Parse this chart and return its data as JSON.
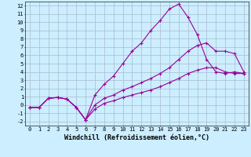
{
  "xlabel": "Windchill (Refroidissement éolien,°C)",
  "bg_color": "#cceeff",
  "line_color": "#990099",
  "xlim": [
    -0.5,
    23.5
  ],
  "ylim": [
    -2.5,
    12.5
  ],
  "xticks": [
    0,
    1,
    2,
    3,
    4,
    5,
    6,
    7,
    8,
    9,
    10,
    11,
    12,
    13,
    14,
    15,
    16,
    17,
    18,
    19,
    20,
    21,
    22,
    23
  ],
  "yticks": [
    -2,
    -1,
    0,
    1,
    2,
    3,
    4,
    5,
    6,
    7,
    8,
    9,
    10,
    11,
    12
  ],
  "line1_x": [
    0,
    1,
    2,
    3,
    4,
    5,
    6,
    7,
    8,
    9,
    10,
    11,
    12,
    13,
    14,
    15,
    16,
    17,
    18,
    19,
    20,
    21,
    22,
    23
  ],
  "line1_y": [
    -0.3,
    -0.3,
    0.8,
    0.9,
    0.7,
    -0.3,
    -1.8,
    1.2,
    2.5,
    3.5,
    5.0,
    6.5,
    7.5,
    9.0,
    10.2,
    11.6,
    12.2,
    10.6,
    8.5,
    5.5,
    4.0,
    3.8,
    4.0,
    3.8
  ],
  "line2_x": [
    0,
    1,
    2,
    3,
    4,
    5,
    6,
    7,
    8,
    9,
    10,
    11,
    12,
    13,
    14,
    15,
    16,
    17,
    18,
    19,
    20,
    21,
    22,
    23
  ],
  "line2_y": [
    -0.3,
    -0.3,
    0.8,
    0.9,
    0.7,
    -0.3,
    -1.8,
    0.0,
    0.8,
    1.2,
    1.8,
    2.2,
    2.7,
    3.2,
    3.8,
    4.5,
    5.5,
    6.5,
    7.2,
    7.5,
    6.5,
    6.5,
    6.2,
    4.0
  ],
  "line3_x": [
    0,
    1,
    2,
    3,
    4,
    5,
    6,
    7,
    8,
    9,
    10,
    11,
    12,
    13,
    14,
    15,
    16,
    17,
    18,
    19,
    20,
    21,
    22,
    23
  ],
  "line3_y": [
    -0.3,
    -0.3,
    0.8,
    0.9,
    0.7,
    -0.3,
    -1.8,
    -0.5,
    0.2,
    0.5,
    0.9,
    1.2,
    1.5,
    1.8,
    2.2,
    2.7,
    3.2,
    3.8,
    4.2,
    4.5,
    4.5,
    4.0,
    3.8,
    3.8
  ],
  "grid_color": "#aabbcc",
  "tick_fontsize": 5.0,
  "label_fontsize": 6.0
}
